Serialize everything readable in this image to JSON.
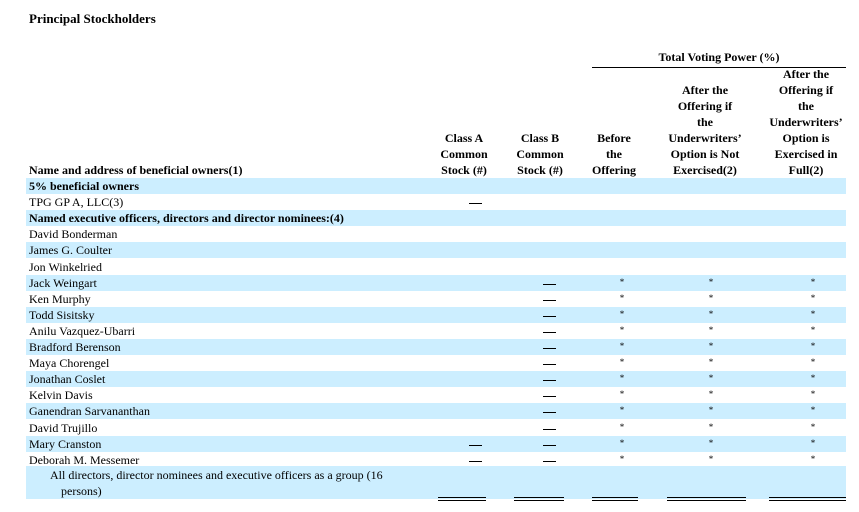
{
  "title": "Principal Stockholders",
  "group_header": "Total Voting Power (%)",
  "columns": {
    "name": "Name and address of beneficial owners(1)",
    "class_a": [
      "Class A",
      "Common",
      "Stock (#)"
    ],
    "class_b": [
      "Class B",
      "Common",
      "Stock (#)"
    ],
    "before": [
      "Before",
      "the",
      "Offering"
    ],
    "after_not": [
      "After the",
      "Offering if",
      "the",
      "Underwriters’",
      "Option is Not",
      "Exercised(2)"
    ],
    "after_full": [
      "After the",
      "Offering if",
      "the",
      "Underwriters’",
      "Option is",
      "Exercised in",
      "Full(2)"
    ]
  },
  "dash": "—",
  "star": "*",
  "rows": [
    {
      "name": "5% beneficial owners",
      "type": "section",
      "shade": true
    },
    {
      "name": "TPG GP A, LLC(3)",
      "shade": false,
      "class_a": true
    },
    {
      "name": "Named executive officers, directors and director nominees:(4)",
      "type": "section",
      "shade": true
    },
    {
      "name": "David Bonderman",
      "shade": false
    },
    {
      "name": "James G. Coulter",
      "shade": true
    },
    {
      "name": "Jon Winkelried",
      "shade": false
    },
    {
      "name": "Jack Weingart",
      "shade": true,
      "class_b": true,
      "stars": true
    },
    {
      "name": "Ken Murphy",
      "shade": false,
      "class_b": true,
      "stars": true
    },
    {
      "name": "Todd Sisitsky",
      "shade": true,
      "class_b": true,
      "stars": true
    },
    {
      "name": "Anilu Vazquez-Ubarri",
      "shade": false,
      "class_b": true,
      "stars": true
    },
    {
      "name": "Bradford Berenson",
      "shade": true,
      "class_b": true,
      "stars": true
    },
    {
      "name": "Maya Chorengel",
      "shade": false,
      "class_b": true,
      "stars": true
    },
    {
      "name": "Jonathan Coslet",
      "shade": true,
      "class_b": true,
      "stars": true
    },
    {
      "name": "Kelvin Davis",
      "shade": false,
      "class_b": true,
      "stars": true
    },
    {
      "name": "Ganendran Sarvananthan",
      "shade": true,
      "class_b": true,
      "stars": true
    },
    {
      "name": "David Trujillo",
      "shade": false,
      "class_b": true,
      "stars": true
    },
    {
      "name": "Mary Cranston",
      "shade": true,
      "class_a": true,
      "class_b": true,
      "stars": true
    },
    {
      "name": "Deborah M. Messemer",
      "shade": false,
      "class_a": true,
      "class_b": true,
      "stars": true
    }
  ],
  "group_row": {
    "line1": "All directors, director nominees and executive officers as a group (16",
    "line2": "persons)"
  }
}
